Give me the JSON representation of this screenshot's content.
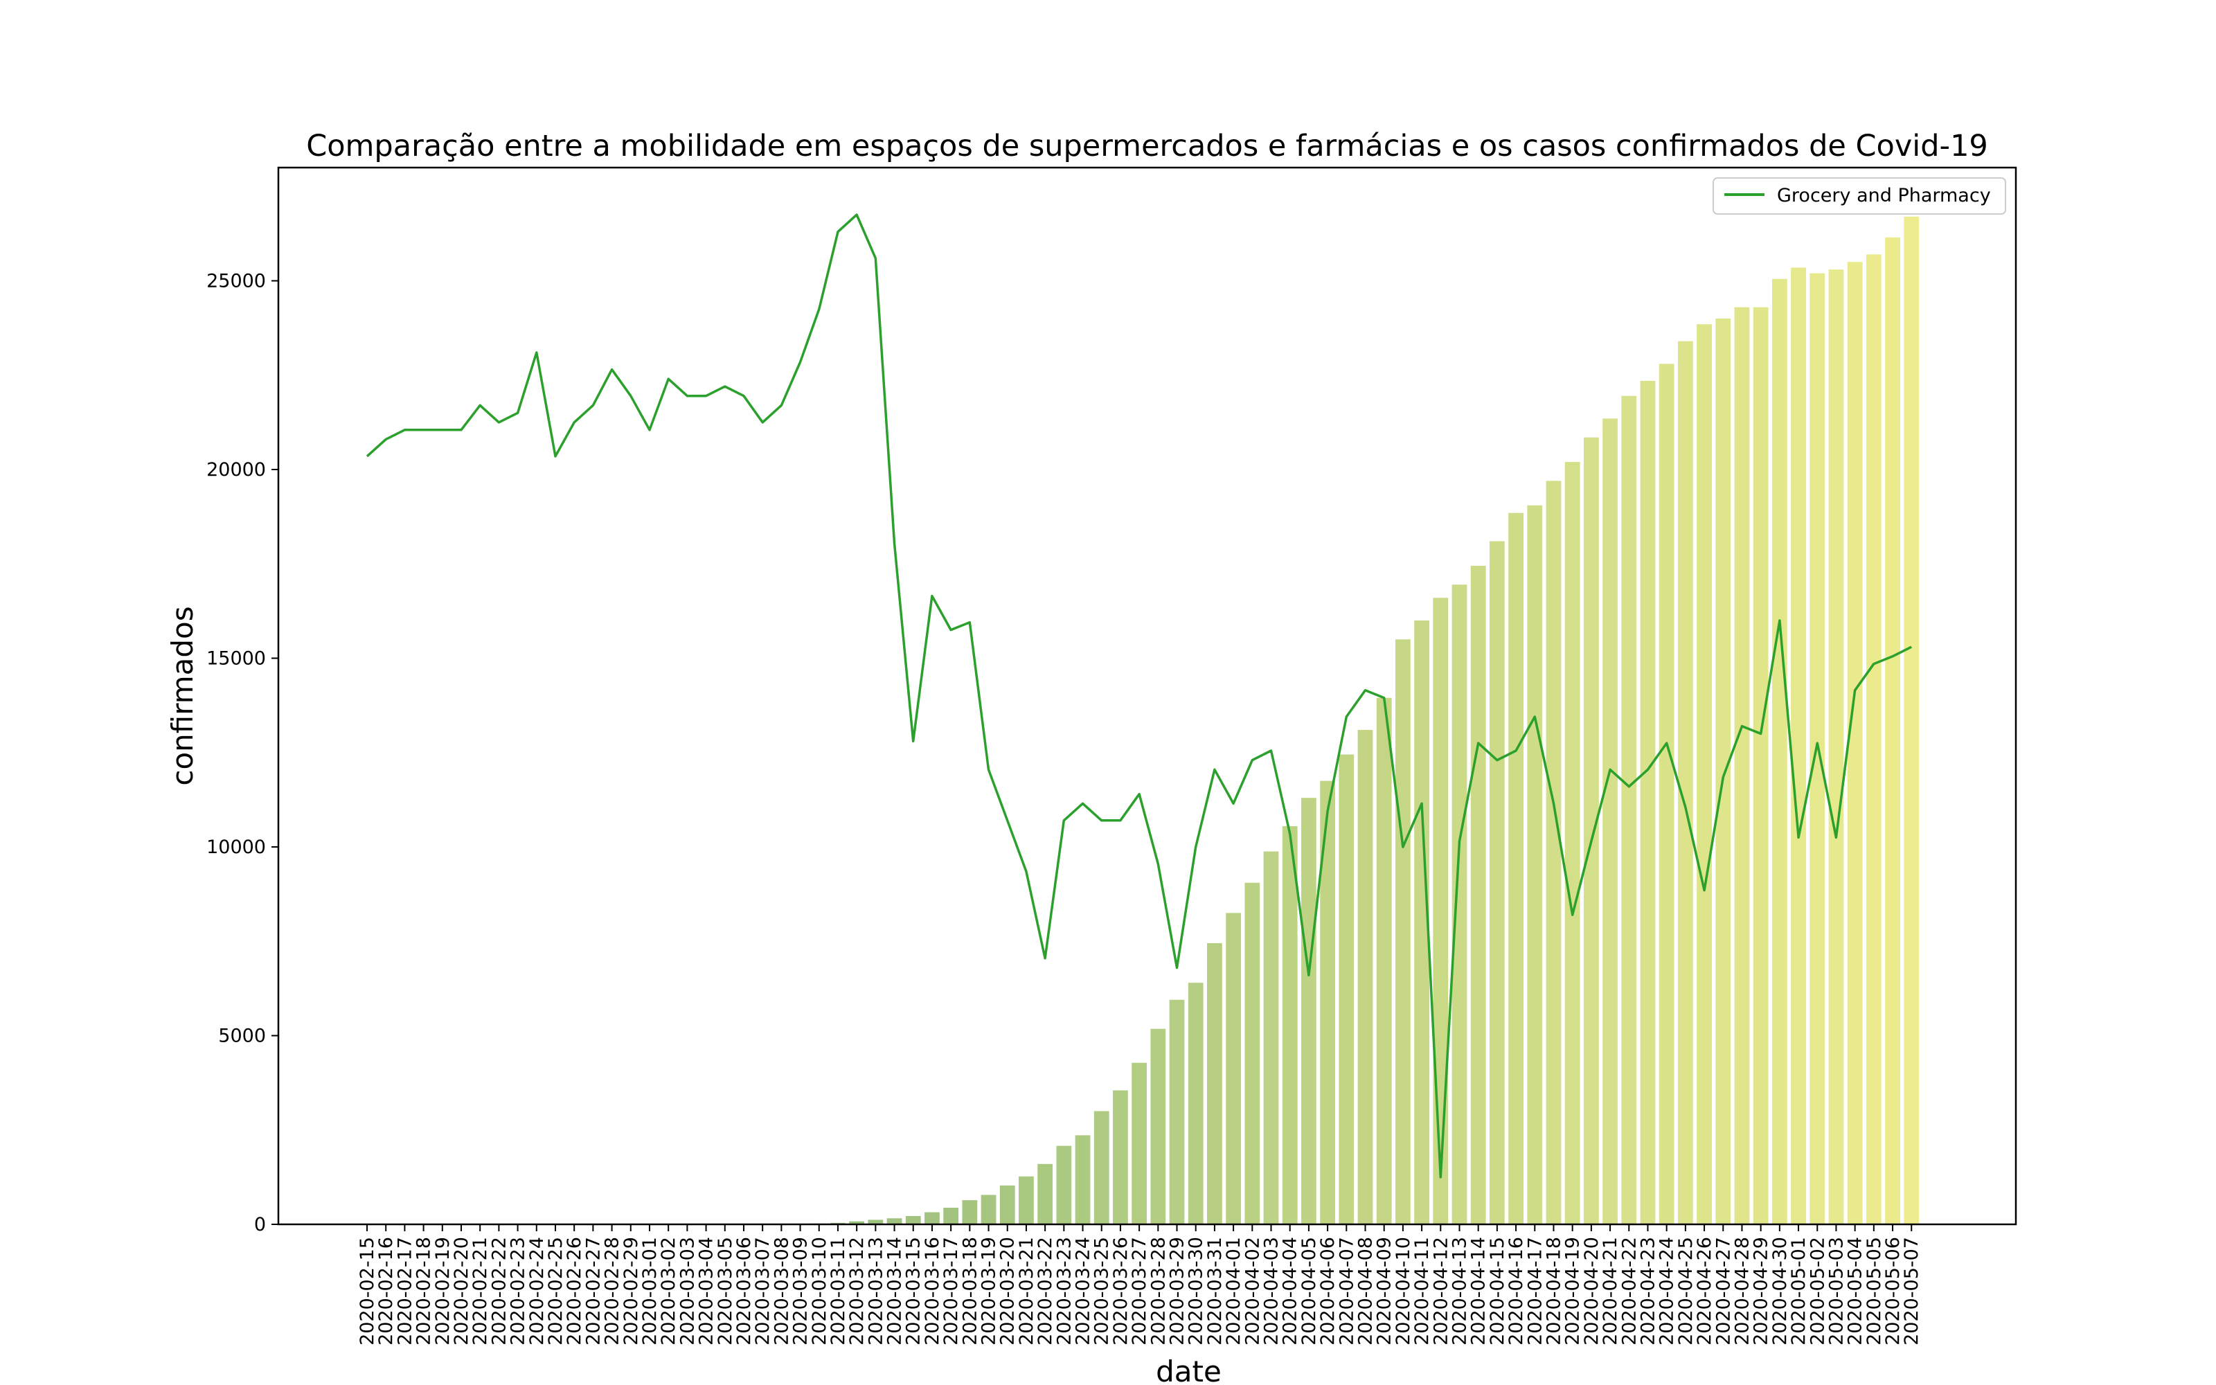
{
  "chart_data": {
    "type": "bar",
    "title": "Comparação entre a mobilidade em espaços de supermercados e farmácias e os casos confirmados de Covid-19",
    "xlabel": "date",
    "ylabel": "confirmados",
    "ylim": [
      0,
      28000
    ],
    "yticks": [
      0,
      5000,
      10000,
      15000,
      20000,
      25000
    ],
    "grid": false,
    "legend_position": "top-right",
    "bar_color_gradient": [
      "#5e9e5e",
      "#eae97a"
    ],
    "line_color": "#2ca02c",
    "categories": [
      "2020-02-15",
      "2020-02-16",
      "2020-02-17",
      "2020-02-18",
      "2020-02-19",
      "2020-02-20",
      "2020-02-21",
      "2020-02-22",
      "2020-02-23",
      "2020-02-24",
      "2020-02-25",
      "2020-02-26",
      "2020-02-27",
      "2020-02-28",
      "2020-02-29",
      "2020-03-01",
      "2020-03-02",
      "2020-03-03",
      "2020-03-04",
      "2020-03-05",
      "2020-03-06",
      "2020-03-07",
      "2020-03-08",
      "2020-03-09",
      "2020-03-10",
      "2020-03-11",
      "2020-03-12",
      "2020-03-13",
      "2020-03-14",
      "2020-03-15",
      "2020-03-16",
      "2020-03-17",
      "2020-03-18",
      "2020-03-19",
      "2020-03-20",
      "2020-03-21",
      "2020-03-22",
      "2020-03-23",
      "2020-03-24",
      "2020-03-25",
      "2020-03-26",
      "2020-03-27",
      "2020-03-28",
      "2020-03-29",
      "2020-03-30",
      "2020-03-31",
      "2020-04-01",
      "2020-04-02",
      "2020-04-03",
      "2020-04-04",
      "2020-04-05",
      "2020-04-06",
      "2020-04-07",
      "2020-04-08",
      "2020-04-09",
      "2020-04-10",
      "2020-04-11",
      "2020-04-12",
      "2020-04-13",
      "2020-04-14",
      "2020-04-15",
      "2020-04-16",
      "2020-04-17",
      "2020-04-18",
      "2020-04-19",
      "2020-04-20",
      "2020-04-21",
      "2020-04-22",
      "2020-04-23",
      "2020-04-24",
      "2020-04-25",
      "2020-04-26",
      "2020-04-27",
      "2020-04-28",
      "2020-04-29",
      "2020-04-30",
      "2020-05-01",
      "2020-05-02",
      "2020-05-03",
      "2020-05-04",
      "2020-05-05",
      "2020-05-06",
      "2020-05-07"
    ],
    "series": [
      {
        "kind": "bar",
        "values": [
          0,
          0,
          0,
          0,
          0,
          0,
          0,
          0,
          0,
          0,
          0,
          0,
          0,
          0,
          0,
          0,
          0,
          0,
          0,
          0,
          0,
          0,
          0,
          0,
          20,
          40,
          80,
          120,
          160,
          220,
          320,
          440,
          640,
          780,
          1030,
          1270,
          1600,
          2080,
          2360,
          3000,
          3550,
          4280,
          5180,
          5950,
          6400,
          7450,
          8250,
          9050,
          9880,
          10550,
          11300,
          11750,
          12450,
          13100,
          13950,
          15500,
          16000,
          16600,
          16950,
          17450,
          18100,
          18850,
          19050,
          19700,
          20200,
          20850,
          21350,
          21950,
          22350,
          22800,
          23400,
          23850,
          24000,
          24300,
          24300,
          25050,
          25350,
          25200,
          25300,
          25500,
          25700,
          26150,
          26700
        ]
      },
      {
        "name": "Grocery and Pharmacy",
        "kind": "line",
        "values": [
          20350,
          20800,
          21050,
          21050,
          21050,
          21050,
          21700,
          21250,
          21500,
          23100,
          20350,
          21250,
          21700,
          22650,
          21950,
          21050,
          22400,
          21950,
          21950,
          22200,
          21950,
          21250,
          21700,
          22850,
          24250,
          26300,
          26750,
          25600,
          18050,
          12800,
          16650,
          15750,
          15950,
          12050,
          10700,
          9350,
          7050,
          10700,
          11150,
          10700,
          10700,
          11400,
          9550,
          6800,
          10000,
          12050,
          11150,
          12300,
          12550,
          10350,
          6600,
          10950,
          13450,
          14150,
          13950,
          10000,
          11150,
          1250,
          10150,
          12750,
          12300,
          12550,
          13450,
          11150,
          8200,
          10150,
          12050,
          11600,
          12050,
          12750,
          11050,
          8850,
          11850,
          13200,
          13000,
          16000,
          10250,
          12750,
          10250,
          14150,
          14850,
          15050,
          15300
        ]
      }
    ]
  }
}
